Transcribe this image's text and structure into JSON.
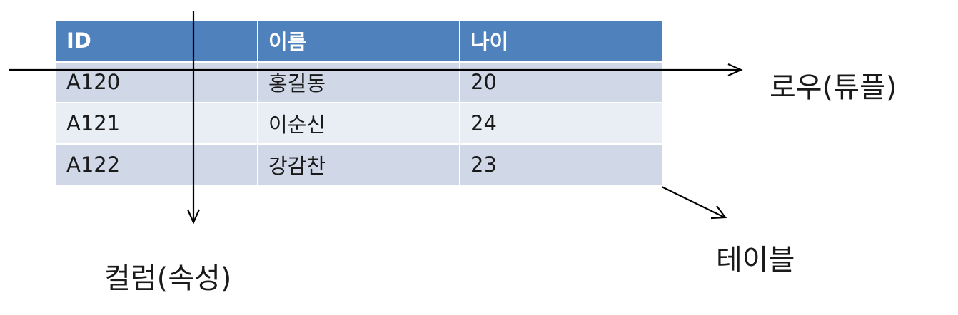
{
  "table": {
    "headers": [
      "ID",
      "이름",
      "나이"
    ],
    "rows": [
      [
        "A120",
        "홍길동",
        "20"
      ],
      [
        "A121",
        "이순신",
        "24"
      ],
      [
        "A122",
        "강감찬",
        "23"
      ]
    ]
  },
  "labels": {
    "row": "로우(튜플)",
    "column": "컬럼(속성)",
    "table": "테이블"
  },
  "colors": {
    "header_bg": "#4f81bd",
    "row_odd": "#d0d8e8",
    "row_even": "#e9edf4",
    "arrow": "#000000"
  }
}
